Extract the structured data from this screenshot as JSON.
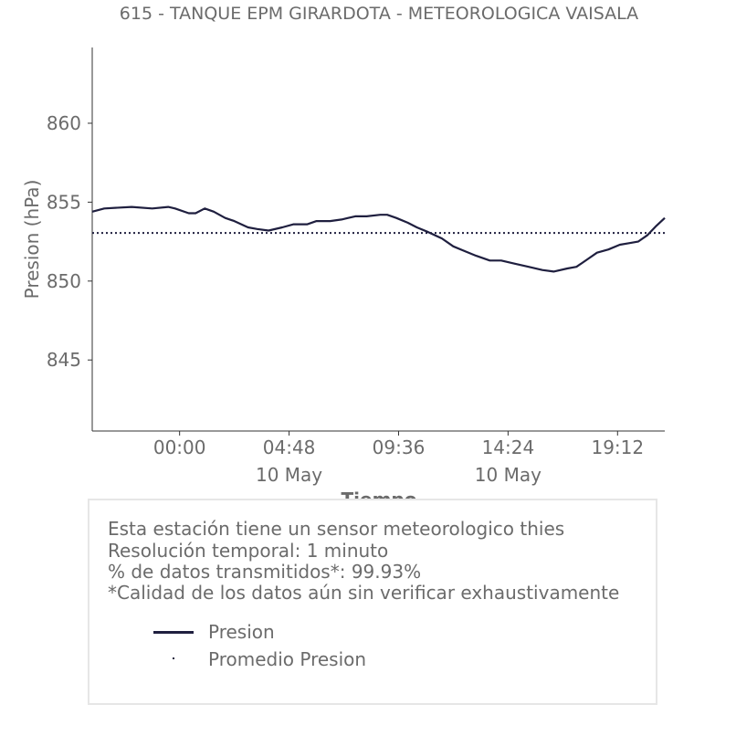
{
  "title": "615 - TANQUE EPM GIRARDOTA - METEOROLOGICA VAISALA",
  "info": {
    "line1": "Esta estación tiene un sensor meteorologico thies",
    "line2": "Resolución temporal: 1 minuto",
    "line3": "% de datos transmitidos*: 99.93%",
    "line4": "*Calidad de los datos aún sin verificar exhaustivamente"
  },
  "legend": {
    "items": [
      {
        "label": "Presion",
        "style": "line"
      },
      {
        "label": "Promedio Presion",
        "style": "dotted"
      }
    ]
  },
  "colors": {
    "series": "#1f1f3f",
    "text": "#6b6b6b",
    "axis": "#333333",
    "border": "#e6e6e6"
  },
  "chart_data": {
    "type": "line",
    "title": "615 - TANQUE EPM GIRARDOTA - METEOROLOGICA VAISALA",
    "xlabel": "Tiempo",
    "ylabel": "Presion (hPa)",
    "xlim_hours": [
      -3.83,
      21.27
    ],
    "ylim": [
      840.5,
      864.8
    ],
    "grid": false,
    "legend_position": "bottom-box",
    "x_ticks": [
      {
        "value": 0,
        "label": "00:00",
        "sublabel": ""
      },
      {
        "value": 4.8,
        "label": "04:48",
        "sublabel": "10 May"
      },
      {
        "value": 9.6,
        "label": "09:36",
        "sublabel": ""
      },
      {
        "value": 14.4,
        "label": "14:24",
        "sublabel": "10 May"
      },
      {
        "value": 19.2,
        "label": "19:12",
        "sublabel": ""
      }
    ],
    "y_ticks": [
      845,
      850,
      855,
      860
    ],
    "series": [
      {
        "name": "Presion",
        "x_hours": [
          -3.83,
          -3.3,
          -2.1,
          -1.2,
          -0.5,
          -0.2,
          0.4,
          0.7,
          1.1,
          1.5,
          2.0,
          2.4,
          3.0,
          3.4,
          3.9,
          4.5,
          5.0,
          5.6,
          6.0,
          6.6,
          7.1,
          7.7,
          8.2,
          8.8,
          9.1,
          9.5,
          10.0,
          10.4,
          10.9,
          11.5,
          12.0,
          12.5,
          13.0,
          13.6,
          14.1,
          14.7,
          15.3,
          15.9,
          16.4,
          17.0,
          17.4,
          17.9,
          18.3,
          18.8,
          19.3,
          19.7,
          20.1,
          20.5,
          20.9,
          21.27
        ],
        "values": [
          854.4,
          854.6,
          854.7,
          854.6,
          854.7,
          854.6,
          854.3,
          854.3,
          854.6,
          854.4,
          854.0,
          853.8,
          853.4,
          853.3,
          853.2,
          853.4,
          853.6,
          853.6,
          853.8,
          853.8,
          853.9,
          854.1,
          854.1,
          854.2,
          854.2,
          854.0,
          853.7,
          853.4,
          853.1,
          852.7,
          852.2,
          851.9,
          851.6,
          851.3,
          851.3,
          851.1,
          850.9,
          850.7,
          850.6,
          850.8,
          850.9,
          851.4,
          851.8,
          852.0,
          852.3,
          852.4,
          852.5,
          852.9,
          853.5,
          854.0
        ]
      },
      {
        "name": "Promedio Presion",
        "x_hours": [
          -3.83,
          21.27
        ],
        "values": [
          853.05,
          853.05
        ]
      }
    ]
  }
}
